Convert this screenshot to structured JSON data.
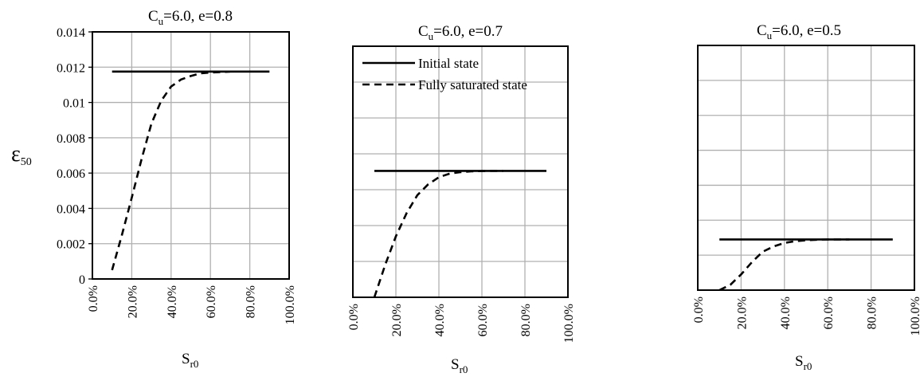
{
  "chart_data": [
    {
      "type": "line",
      "title": {
        "prefix": "C",
        "sub": "u",
        "suffix": "=6.0, e=0.8"
      },
      "ylabel": {
        "main": "ε",
        "sub": "50"
      },
      "xlabel": {
        "main": "S",
        "sub": "r0"
      },
      "xlim": [
        0,
        1
      ],
      "ylim": [
        0,
        0.014
      ],
      "x_ticks": [
        0,
        0.2,
        0.4,
        0.6,
        0.8,
        1.0
      ],
      "x_tick_labels": [
        "0.0%",
        "20.0%",
        "40.0%",
        "60.0%",
        "80.0%",
        "100.0%"
      ],
      "y_ticks": [
        0,
        0.002,
        0.004,
        0.006,
        0.008,
        0.01,
        0.012,
        0.014
      ],
      "y_tick_labels": [
        "0",
        "0.002",
        "0.004",
        "0.006",
        "0.008",
        "0.01",
        "0.012",
        "0.014"
      ],
      "grid": true,
      "legend": null,
      "series": [
        {
          "name": "Initial state",
          "x": [
            0.1,
            0.9
          ],
          "y": [
            0.01175,
            0.01175
          ]
        },
        {
          "name": "Fully saturated state",
          "x": [
            0.1,
            0.15,
            0.2,
            0.25,
            0.3,
            0.35,
            0.4,
            0.45,
            0.5,
            0.55,
            0.6,
            0.65,
            0.7
          ],
          "y": [
            0.0005,
            0.0025,
            0.0046,
            0.0068,
            0.0088,
            0.0101,
            0.0109,
            0.0113,
            0.0115,
            0.01165,
            0.0117,
            0.01172,
            0.01175
          ]
        }
      ]
    },
    {
      "type": "line",
      "title": {
        "prefix": "C",
        "sub": "u",
        "suffix": "=6.0, e=0.7"
      },
      "ylabel": null,
      "xlabel": {
        "main": "S",
        "sub": "r0"
      },
      "xlim": [
        0,
        1
      ],
      "ylim": [
        0,
        0.014
      ],
      "x_ticks": [
        0,
        0.2,
        0.4,
        0.6,
        0.8,
        1.0
      ],
      "x_tick_labels": [
        "0.0%",
        "20.0%",
        "40.0%",
        "60.0%",
        "80.0%",
        "100.0%"
      ],
      "y_ticks": [
        0,
        0.002,
        0.004,
        0.006,
        0.008,
        0.01,
        0.012,
        0.014
      ],
      "y_tick_labels": [],
      "grid": true,
      "legend": {
        "placement": "top-left",
        "entries": [
          "Initial state",
          "Fully saturated state"
        ]
      },
      "series": [
        {
          "name": "Initial state",
          "x": [
            0.1,
            0.9
          ],
          "y": [
            0.00705,
            0.00705
          ]
        },
        {
          "name": "Fully saturated state",
          "x": [
            0.1,
            0.15,
            0.2,
            0.25,
            0.3,
            0.35,
            0.4,
            0.45,
            0.5,
            0.55,
            0.6,
            0.65,
            0.7
          ],
          "y": [
            0.0,
            0.0018,
            0.0034,
            0.0047,
            0.0057,
            0.0063,
            0.0067,
            0.0069,
            0.00698,
            0.00702,
            0.00704,
            0.00705,
            0.00705
          ]
        }
      ]
    },
    {
      "type": "line",
      "title": {
        "prefix": "C",
        "sub": "u",
        "suffix": "=6.0, e=0.5"
      },
      "ylabel": null,
      "xlabel": {
        "main": "S",
        "sub": "r0"
      },
      "xlim": [
        0,
        1
      ],
      "ylim": [
        0,
        0.014
      ],
      "x_ticks": [
        0,
        0.2,
        0.4,
        0.6,
        0.8,
        1.0
      ],
      "x_tick_labels": [
        "0.0%",
        "20.0%",
        "40.0%",
        "60.0%",
        "80.0%",
        "100.0%"
      ],
      "y_ticks": [
        0,
        0.002,
        0.004,
        0.006,
        0.008,
        0.01,
        0.012,
        0.014
      ],
      "y_tick_labels": [],
      "grid": true,
      "legend": null,
      "series": [
        {
          "name": "Initial state",
          "x": [
            0.1,
            0.9
          ],
          "y": [
            0.0029,
            0.0029
          ]
        },
        {
          "name": "Fully saturated state",
          "x": [
            0.1,
            0.15,
            0.2,
            0.25,
            0.3,
            0.35,
            0.4,
            0.45,
            0.5,
            0.55,
            0.6,
            0.65,
            0.7
          ],
          "y": [
            0.0,
            0.0003,
            0.0009,
            0.0016,
            0.0022,
            0.0025,
            0.0027,
            0.0028,
            0.00285,
            0.00288,
            0.0029,
            0.0029,
            0.0029
          ]
        }
      ]
    }
  ]
}
